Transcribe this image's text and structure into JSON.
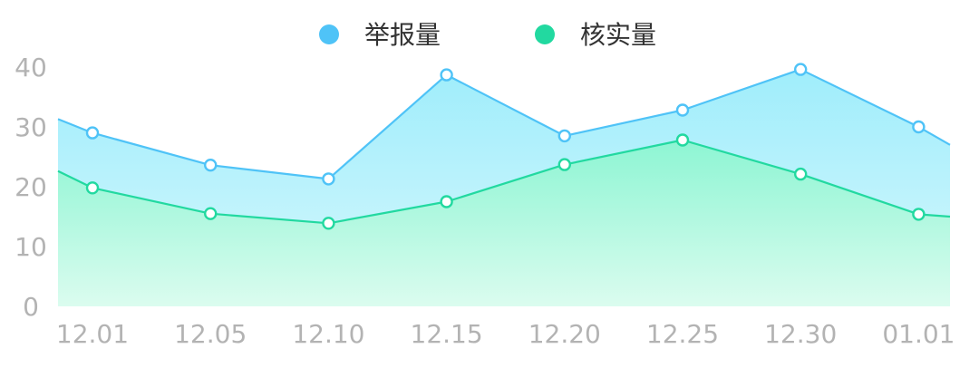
{
  "chart_data": {
    "type": "area",
    "x": [
      "12.01",
      "12.05",
      "12.10",
      "12.15",
      "12.20",
      "12.25",
      "12.30",
      "01.01"
    ],
    "ylim": [
      0,
      40
    ],
    "yticks": [
      0,
      10,
      20,
      30,
      40
    ],
    "grid": false,
    "legend_position": "top-center",
    "series": [
      {
        "name": "举报量",
        "color": "#4fc3f7",
        "fill_top": "#9fedfb",
        "fill_bottom": "#d7f8fd",
        "edge_start": 31.3,
        "edge_end": 27.0,
        "values": [
          29,
          23.6,
          21.3,
          38.7,
          28.5,
          32.8,
          39.6,
          30.0
        ]
      },
      {
        "name": "核实量",
        "color": "#22d9a0",
        "fill_top": "#8df5d3",
        "fill_bottom": "#dbfcef",
        "edge_start": 22.6,
        "edge_end": 15.0,
        "values": [
          19.8,
          15.5,
          13.9,
          17.5,
          23.7,
          27.8,
          22.1,
          15.4
        ]
      }
    ]
  }
}
